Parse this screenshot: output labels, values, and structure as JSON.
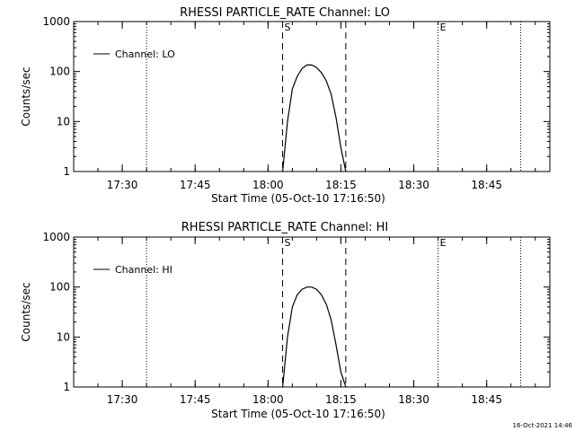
{
  "chart_data": [
    {
      "type": "line",
      "title": "RHESSI PARTICLE_RATE Channel: LO",
      "xlabel": "Start Time (05-Oct-10 17:16:50)",
      "ylabel": "Counts/sec",
      "yscale": "log",
      "ylim": [
        1,
        1000
      ],
      "xlim": [
        "17:20",
        "18:58"
      ],
      "x_ticks": [
        "17:30",
        "17:45",
        "18:00",
        "18:15",
        "18:30",
        "18:45"
      ],
      "y_ticks": [
        "1",
        "10",
        "100",
        "1000"
      ],
      "grid": false,
      "legend": {
        "position": "top-left",
        "entries": [
          "Channel: LO"
        ]
      },
      "series": [
        {
          "name": "Channel: LO",
          "x": [
            "18:03",
            "18:04",
            "18:05",
            "18:06",
            "18:07",
            "18:08",
            "18:09",
            "18:10",
            "18:11",
            "18:12",
            "18:13",
            "18:14",
            "18:15",
            "18:16"
          ],
          "values": [
            1,
            10,
            45,
            80,
            115,
            135,
            135,
            120,
            95,
            65,
            35,
            12,
            3,
            1
          ]
        }
      ],
      "vlines": [
        {
          "x": "17:35",
          "style": "dotted",
          "label": ""
        },
        {
          "x": "18:03",
          "style": "dashed",
          "label": "S"
        },
        {
          "x": "18:16",
          "style": "dashed",
          "label": ""
        },
        {
          "x": "18:35",
          "style": "dotted",
          "label": "E"
        },
        {
          "x": "18:52",
          "style": "dotted",
          "label": ""
        }
      ]
    },
    {
      "type": "line",
      "title": "RHESSI PARTICLE_RATE Channel: HI",
      "xlabel": "Start Time (05-Oct-10 17:16:50)",
      "ylabel": "Counts/sec",
      "yscale": "log",
      "ylim": [
        1,
        1000
      ],
      "xlim": [
        "17:20",
        "18:58"
      ],
      "x_ticks": [
        "17:30",
        "17:45",
        "18:00",
        "18:15",
        "18:30",
        "18:45"
      ],
      "y_ticks": [
        "1",
        "10",
        "100",
        "1000"
      ],
      "grid": false,
      "legend": {
        "position": "top-left",
        "entries": [
          "Channel: HI"
        ]
      },
      "series": [
        {
          "name": "Channel: HI",
          "x": [
            "18:03",
            "18:04",
            "18:05",
            "18:06",
            "18:07",
            "18:08",
            "18:09",
            "18:10",
            "18:11",
            "18:12",
            "18:13",
            "18:14",
            "18:15",
            "18:16"
          ],
          "values": [
            1,
            10,
            40,
            70,
            90,
            100,
            100,
            90,
            70,
            45,
            22,
            7,
            2,
            1
          ]
        }
      ],
      "vlines": [
        {
          "x": "17:35",
          "style": "dotted",
          "label": ""
        },
        {
          "x": "18:03",
          "style": "dashed",
          "label": "S"
        },
        {
          "x": "18:16",
          "style": "dashed",
          "label": ""
        },
        {
          "x": "18:35",
          "style": "dotted",
          "label": "E"
        },
        {
          "x": "18:52",
          "style": "dotted",
          "label": ""
        }
      ]
    }
  ],
  "footer": {
    "timestamp": "16-Oct-2021 14:46"
  }
}
